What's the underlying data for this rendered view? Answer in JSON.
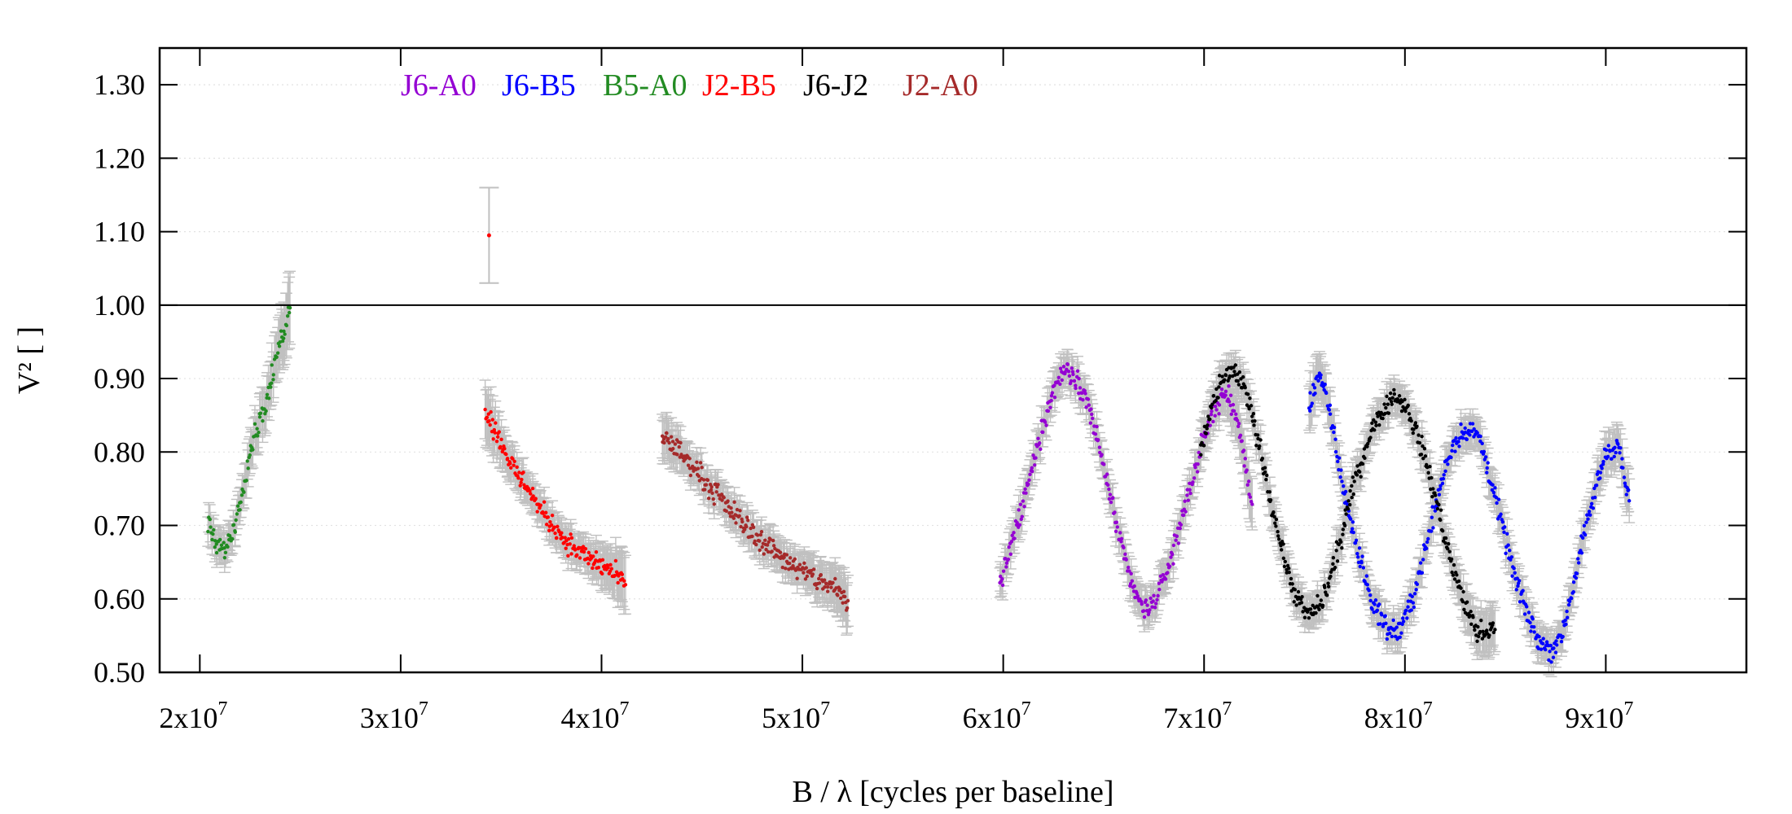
{
  "chart_data": {
    "type": "scatter",
    "title": "",
    "xlabel": "B / λ [cycles per baseline]",
    "ylabel": "V² [ ]",
    "xlim": [
      18000000,
      97000000
    ],
    "ylim": [
      0.5,
      1.35
    ],
    "x_ticks": [
      {
        "value": 20000000,
        "mantissa": "2x10",
        "exp": "7"
      },
      {
        "value": 30000000,
        "mantissa": "3x10",
        "exp": "7"
      },
      {
        "value": 40000000,
        "mantissa": "4x10",
        "exp": "7"
      },
      {
        "value": 50000000,
        "mantissa": "5x10",
        "exp": "7"
      },
      {
        "value": 60000000,
        "mantissa": "6x10",
        "exp": "7"
      },
      {
        "value": 70000000,
        "mantissa": "7x10",
        "exp": "7"
      },
      {
        "value": 80000000,
        "mantissa": "8x10",
        "exp": "7"
      },
      {
        "value": 90000000,
        "mantissa": "9x10",
        "exp": "7"
      }
    ],
    "y_ticks": [
      {
        "value": 0.5,
        "label": "0.50"
      },
      {
        "value": 0.6,
        "label": "0.60"
      },
      {
        "value": 0.7,
        "label": "0.70"
      },
      {
        "value": 0.8,
        "label": "0.80"
      },
      {
        "value": 0.9,
        "label": "0.90"
      },
      {
        "value": 1.0,
        "label": "1.00"
      },
      {
        "value": 1.1,
        "label": "1.10"
      },
      {
        "value": 1.2,
        "label": "1.20"
      },
      {
        "value": 1.3,
        "label": "1.30"
      }
    ],
    "reference_line": 1.0,
    "grid": true,
    "legend_position": "top-left",
    "error_bar_color": "#c0c0c0",
    "series": [
      {
        "name": "J6-A0",
        "color": "#9400d3",
        "x": [
          59800000,
          60500000,
          61300000,
          62000000,
          62600000,
          63100000,
          63600000,
          64300000,
          65000000,
          65800000,
          66500000,
          67000000,
          67500000,
          68200000,
          69000000,
          69800000,
          70500000,
          71000000,
          71500000,
          72000000,
          72400000
        ],
        "y": [
          0.62,
          0.68,
          0.76,
          0.84,
          0.89,
          0.915,
          0.905,
          0.86,
          0.78,
          0.68,
          0.61,
          0.585,
          0.595,
          0.64,
          0.72,
          0.8,
          0.86,
          0.88,
          0.86,
          0.79,
          0.72
        ],
        "error": [
          0.02,
          0.02,
          0.02,
          0.02,
          0.02,
          0.02,
          0.02,
          0.02,
          0.02,
          0.02,
          0.02,
          0.02,
          0.02,
          0.02,
          0.02,
          0.02,
          0.02,
          0.025,
          0.03,
          0.03,
          0.035
        ]
      },
      {
        "name": "J6-B5",
        "color": "#0000ff",
        "x": [
          75200000,
          75700000,
          76200000,
          76800000,
          77500000,
          78300000,
          79100000,
          79700000,
          80400000,
          81200000,
          82000000,
          82600000,
          83200000,
          83700000,
          84300000,
          85000000,
          85800000,
          86600000,
          87300000,
          87800000,
          88400000,
          89200000,
          90000000,
          90600000,
          91200000
        ],
        "y": [
          0.86,
          0.91,
          0.86,
          0.77,
          0.68,
          0.6,
          0.56,
          0.555,
          0.6,
          0.69,
          0.78,
          0.82,
          0.83,
          0.82,
          0.76,
          0.68,
          0.6,
          0.545,
          0.53,
          0.55,
          0.62,
          0.72,
          0.8,
          0.81,
          0.73
        ],
        "error": [
          0.03,
          0.03,
          0.025,
          0.02,
          0.02,
          0.02,
          0.02,
          0.02,
          0.02,
          0.02,
          0.02,
          0.02,
          0.02,
          0.02,
          0.02,
          0.02,
          0.02,
          0.02,
          0.02,
          0.02,
          0.02,
          0.02,
          0.025,
          0.025,
          0.03
        ]
      },
      {
        "name": "B5-A0",
        "color": "#228b22",
        "x": [
          20400000,
          20700000,
          21000000,
          21300000,
          21600000,
          22000000,
          22400000,
          22800000,
          23200000,
          23600000,
          23900000,
          24200000,
          24500000
        ],
        "y": [
          0.7,
          0.68,
          0.665,
          0.67,
          0.69,
          0.73,
          0.79,
          0.83,
          0.86,
          0.9,
          0.94,
          0.97,
          1.0
        ],
        "error": [
          0.02,
          0.02,
          0.02,
          0.02,
          0.02,
          0.02,
          0.025,
          0.025,
          0.03,
          0.03,
          0.035,
          0.04,
          0.05
        ]
      },
      {
        "name": "J2-B5",
        "color": "#ff0000",
        "x": [
          34200000,
          34700000,
          35200000,
          35800000,
          36400000,
          37000000,
          37600000,
          38200000,
          38800000,
          39400000,
          40000000,
          40600000,
          41200000
        ],
        "y": [
          0.86,
          0.83,
          0.8,
          0.77,
          0.75,
          0.72,
          0.7,
          0.68,
          0.665,
          0.655,
          0.645,
          0.635,
          0.62
        ],
        "error": [
          0.04,
          0.03,
          0.025,
          0.02,
          0.02,
          0.02,
          0.02,
          0.02,
          0.02,
          0.02,
          0.025,
          0.03,
          0.04
        ]
      },
      {
        "name": "J6-J2",
        "color": "#000000",
        "x": [
          69800000,
          70500000,
          71200000,
          71800000,
          72300000,
          72900000,
          73600000,
          74300000,
          74900000,
          75500000,
          76100000,
          76800000,
          77500000,
          78200000,
          78900000,
          79500000,
          80100000,
          80800000,
          81600000,
          82300000,
          83000000,
          83600000,
          84100000,
          84500000
        ],
        "y": [
          0.8,
          0.87,
          0.91,
          0.9,
          0.86,
          0.79,
          0.7,
          0.62,
          0.585,
          0.58,
          0.61,
          0.68,
          0.76,
          0.82,
          0.86,
          0.875,
          0.86,
          0.81,
          0.73,
          0.65,
          0.59,
          0.555,
          0.55,
          0.56
        ],
        "error": [
          0.02,
          0.02,
          0.02,
          0.02,
          0.02,
          0.02,
          0.02,
          0.02,
          0.02,
          0.02,
          0.02,
          0.02,
          0.02,
          0.02,
          0.02,
          0.02,
          0.02,
          0.02,
          0.02,
          0.02,
          0.025,
          0.025,
          0.03,
          0.03
        ]
      },
      {
        "name": "J2-A0",
        "color": "#a52a2a",
        "x": [
          43000000,
          43600000,
          44200000,
          44900000,
          45600000,
          46300000,
          47000000,
          47700000,
          48400000,
          49100000,
          49800000,
          50500000,
          51200000,
          51800000,
          52300000
        ],
        "y": [
          0.82,
          0.81,
          0.79,
          0.77,
          0.745,
          0.725,
          0.705,
          0.685,
          0.67,
          0.655,
          0.64,
          0.63,
          0.62,
          0.61,
          0.59
        ],
        "error": [
          0.03,
          0.025,
          0.02,
          0.02,
          0.02,
          0.02,
          0.02,
          0.02,
          0.02,
          0.02,
          0.02,
          0.025,
          0.025,
          0.03,
          0.035
        ]
      }
    ],
    "outliers": [
      {
        "series": "J2-B5",
        "x": 34400000,
        "y": 1.095,
        "error": 0.065
      }
    ]
  }
}
